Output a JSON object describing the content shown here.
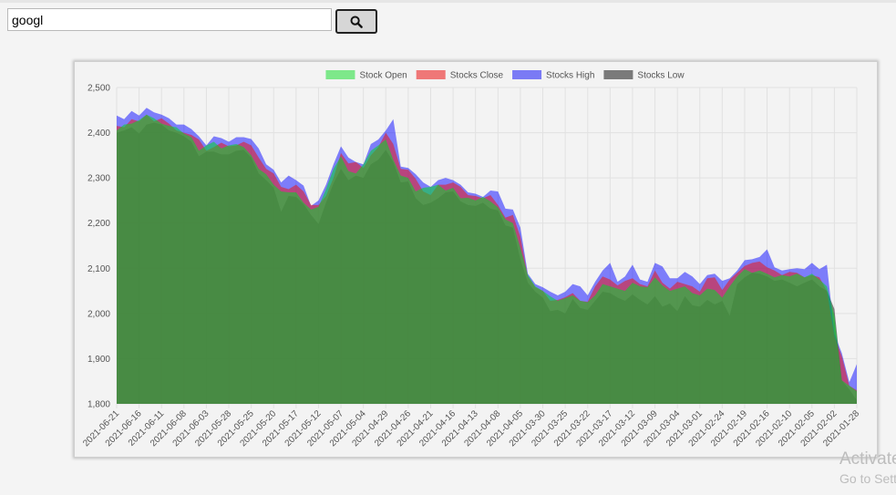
{
  "search": {
    "value": "googl",
    "button_icon": "search-icon"
  },
  "watermark": {
    "line1": "Activate Windows",
    "line2": "Go to Settings to activate Windows."
  },
  "colors": {
    "page_bg": "#f4f4f4",
    "grid": "#e1e1e1",
    "open_fill": "rgba(0,216,40,0.55)",
    "close_fill": "rgba(234,24,24,0.55)",
    "high_fill": "rgba(28,28,255,0.55)",
    "low_fill": "rgba(30,30,30,0.55)",
    "green_composite": "#4a8a2e"
  },
  "chart_data": {
    "type": "area",
    "x": [
      "2021-06-21",
      "2021-06-18",
      "2021-06-17",
      "2021-06-16",
      "2021-06-15",
      "2021-06-14",
      "2021-06-11",
      "2021-06-10",
      "2021-06-09",
      "2021-06-08",
      "2021-06-07",
      "2021-06-04",
      "2021-06-03",
      "2021-06-02",
      "2021-06-01",
      "2021-05-28",
      "2021-05-27",
      "2021-05-26",
      "2021-05-25",
      "2021-05-24",
      "2021-05-21",
      "2021-05-20",
      "2021-05-19",
      "2021-05-18",
      "2021-05-17",
      "2021-05-14",
      "2021-05-13",
      "2021-05-12",
      "2021-05-11",
      "2021-05-10",
      "2021-05-07",
      "2021-05-06",
      "2021-05-05",
      "2021-05-04",
      "2021-05-03",
      "2021-04-30",
      "2021-04-29",
      "2021-04-28",
      "2021-04-27",
      "2021-04-26",
      "2021-04-23",
      "2021-04-22",
      "2021-04-21",
      "2021-04-20",
      "2021-04-19",
      "2021-04-16",
      "2021-04-15",
      "2021-04-14",
      "2021-04-13",
      "2021-04-12",
      "2021-04-09",
      "2021-04-08",
      "2021-04-07",
      "2021-04-06",
      "2021-04-05",
      "2021-04-01",
      "2021-03-31",
      "2021-03-30",
      "2021-03-29",
      "2021-03-26",
      "2021-03-25",
      "2021-03-24",
      "2021-03-23",
      "2021-03-22",
      "2021-03-19",
      "2021-03-18",
      "2021-03-17",
      "2021-03-16",
      "2021-03-15",
      "2021-03-12",
      "2021-03-11",
      "2021-03-10",
      "2021-03-09",
      "2021-03-08",
      "2021-03-05",
      "2021-03-04",
      "2021-03-03",
      "2021-03-02",
      "2021-03-01",
      "2021-02-26",
      "2021-02-25",
      "2021-02-24",
      "2021-02-23",
      "2021-02-22",
      "2021-02-19",
      "2021-02-18",
      "2021-02-17",
      "2021-02-16",
      "2021-02-12",
      "2021-02-11",
      "2021-02-10",
      "2021-02-09",
      "2021-02-08",
      "2021-02-05",
      "2021-02-04",
      "2021-02-03",
      "2021-02-02",
      "2021-02-01",
      "2021-01-29",
      "2021-01-28"
    ],
    "tick_labels": [
      "2021-06-21",
      "2021-06-16",
      "2021-06-11",
      "2021-06-08",
      "2021-06-03",
      "2021-05-28",
      "2021-05-25",
      "2021-05-20",
      "2021-05-17",
      "2021-05-12",
      "2021-05-07",
      "2021-05-04",
      "2021-04-29",
      "2021-04-26",
      "2021-04-21",
      "2021-04-16",
      "2021-04-13",
      "2021-04-08",
      "2021-04-05",
      "2021-03-30",
      "2021-03-25",
      "2021-03-22",
      "2021-03-17",
      "2021-03-12",
      "2021-03-09",
      "2021-03-04",
      "2021-03-01",
      "2021-02-24",
      "2021-02-19",
      "2021-02-16",
      "2021-02-10",
      "2021-02-05",
      "2021-02-02",
      "2021-01-28"
    ],
    "series": [
      {
        "name": "Stock Open",
        "fill": "rgba(0,216,40,0.55)",
        "swatch": "#7de88a",
        "values": [
          2405,
          2418,
          2420,
          2428,
          2440,
          2432,
          2420,
          2415,
          2412,
          2398,
          2390,
          2360,
          2372,
          2380,
          2365,
          2372,
          2375,
          2368,
          2350,
          2320,
          2308,
          2285,
          2270,
          2268,
          2268,
          2245,
          2230,
          2236,
          2275,
          2320,
          2348,
          2315,
          2310,
          2330,
          2360,
          2372,
          2385,
          2340,
          2305,
          2300,
          2270,
          2278,
          2280,
          2285,
          2272,
          2278,
          2255,
          2256,
          2250,
          2258,
          2248,
          2235,
          2208,
          2200,
          2145,
          2085,
          2060,
          2050,
          2038,
          2028,
          2034,
          2040,
          2028,
          2025,
          2040,
          2065,
          2060,
          2055,
          2050,
          2068,
          2060,
          2058,
          2080,
          2062,
          2050,
          2055,
          2060,
          2045,
          2040,
          2055,
          2052,
          2035,
          2060,
          2082,
          2098,
          2090,
          2095,
          2088,
          2080,
          2085,
          2082,
          2088,
          2080,
          2088,
          2075,
          2060,
          1995,
          1852,
          1840,
          1828
        ]
      },
      {
        "name": "Stocks Close",
        "fill": "rgba(234,24,24,0.55)",
        "swatch": "#ef7777",
        "values": [
          2415,
          2412,
          2430,
          2425,
          2440,
          2425,
          2432,
          2420,
          2405,
          2400,
          2395,
          2385,
          2360,
          2368,
          2378,
          2370,
          2372,
          2380,
          2372,
          2345,
          2320,
          2310,
          2280,
          2275,
          2285,
          2270,
          2240,
          2240,
          2260,
          2300,
          2355,
          2332,
          2335,
          2322,
          2350,
          2368,
          2400,
          2375,
          2320,
          2318,
          2298,
          2270,
          2262,
          2285,
          2285,
          2290,
          2280,
          2262,
          2260,
          2255,
          2262,
          2240,
          2212,
          2218,
          2170,
          2082,
          2058,
          2050,
          2028,
          2030,
          2036,
          2045,
          2028,
          2026,
          2060,
          2082,
          2075,
          2062,
          2072,
          2078,
          2065,
          2060,
          2095,
          2068,
          2055,
          2070,
          2065,
          2060,
          2048,
          2078,
          2080,
          2052,
          2075,
          2090,
          2105,
          2112,
          2115,
          2102,
          2095,
          2085,
          2092,
          2090,
          2080,
          2085,
          2080,
          2050,
          1950,
          1905,
          1840,
          1830
        ]
      },
      {
        "name": "Stocks High",
        "fill": "rgba(28,28,255,0.55)",
        "swatch": "#7a7af5",
        "values": [
          2438,
          2430,
          2448,
          2438,
          2455,
          2445,
          2440,
          2432,
          2418,
          2418,
          2408,
          2392,
          2372,
          2392,
          2388,
          2380,
          2390,
          2390,
          2386,
          2365,
          2330,
          2318,
          2290,
          2305,
          2295,
          2283,
          2238,
          2250,
          2285,
          2330,
          2370,
          2345,
          2335,
          2330,
          2375,
          2385,
          2405,
          2430,
          2325,
          2322,
          2308,
          2290,
          2280,
          2295,
          2300,
          2295,
          2285,
          2268,
          2265,
          2258,
          2272,
          2270,
          2232,
          2230,
          2190,
          2088,
          2065,
          2058,
          2048,
          2040,
          2048,
          2065,
          2060,
          2040,
          2070,
          2095,
          2112,
          2070,
          2082,
          2108,
          2075,
          2070,
          2112,
          2104,
          2078,
          2078,
          2092,
          2082,
          2065,
          2085,
          2088,
          2072,
          2078,
          2095,
          2118,
          2120,
          2125,
          2142,
          2102,
          2095,
          2098,
          2100,
          2098,
          2112,
          2098,
          2108,
          1955,
          1912,
          1848,
          1888
        ]
      },
      {
        "name": "Stocks Low",
        "fill": "rgba(30,30,30,0.55)",
        "swatch": "#7a7a7a",
        "values": [
          2400,
          2405,
          2412,
          2398,
          2418,
          2422,
          2418,
          2405,
          2400,
          2392,
          2380,
          2348,
          2358,
          2358,
          2352,
          2352,
          2360,
          2362,
          2345,
          2310,
          2295,
          2278,
          2225,
          2260,
          2258,
          2242,
          2218,
          2198,
          2245,
          2288,
          2320,
          2295,
          2305,
          2300,
          2330,
          2340,
          2362,
          2335,
          2290,
          2292,
          2255,
          2240,
          2245,
          2255,
          2268,
          2270,
          2248,
          2240,
          2238,
          2245,
          2232,
          2228,
          2195,
          2190,
          2120,
          2068,
          2048,
          2035,
          2005,
          2008,
          2000,
          2032,
          2012,
          2008,
          2028,
          2048,
          2045,
          2035,
          2028,
          2042,
          2030,
          2020,
          2038,
          2015,
          2022,
          2005,
          2038,
          2018,
          2015,
          2030,
          2020,
          2028,
          1995,
          2065,
          2080,
          2090,
          2088,
          2082,
          2072,
          2075,
          2068,
          2060,
          2068,
          2075,
          2060,
          2050,
          2010,
          1852,
          1832,
          1808
        ]
      }
    ],
    "xlabel": "",
    "ylabel": "",
    "ylim": [
      1800,
      2500
    ],
    "y_ticks": [
      1800,
      1900,
      2000,
      2100,
      2200,
      2300,
      2400,
      2500
    ],
    "grid": true,
    "legend_position": "top"
  }
}
